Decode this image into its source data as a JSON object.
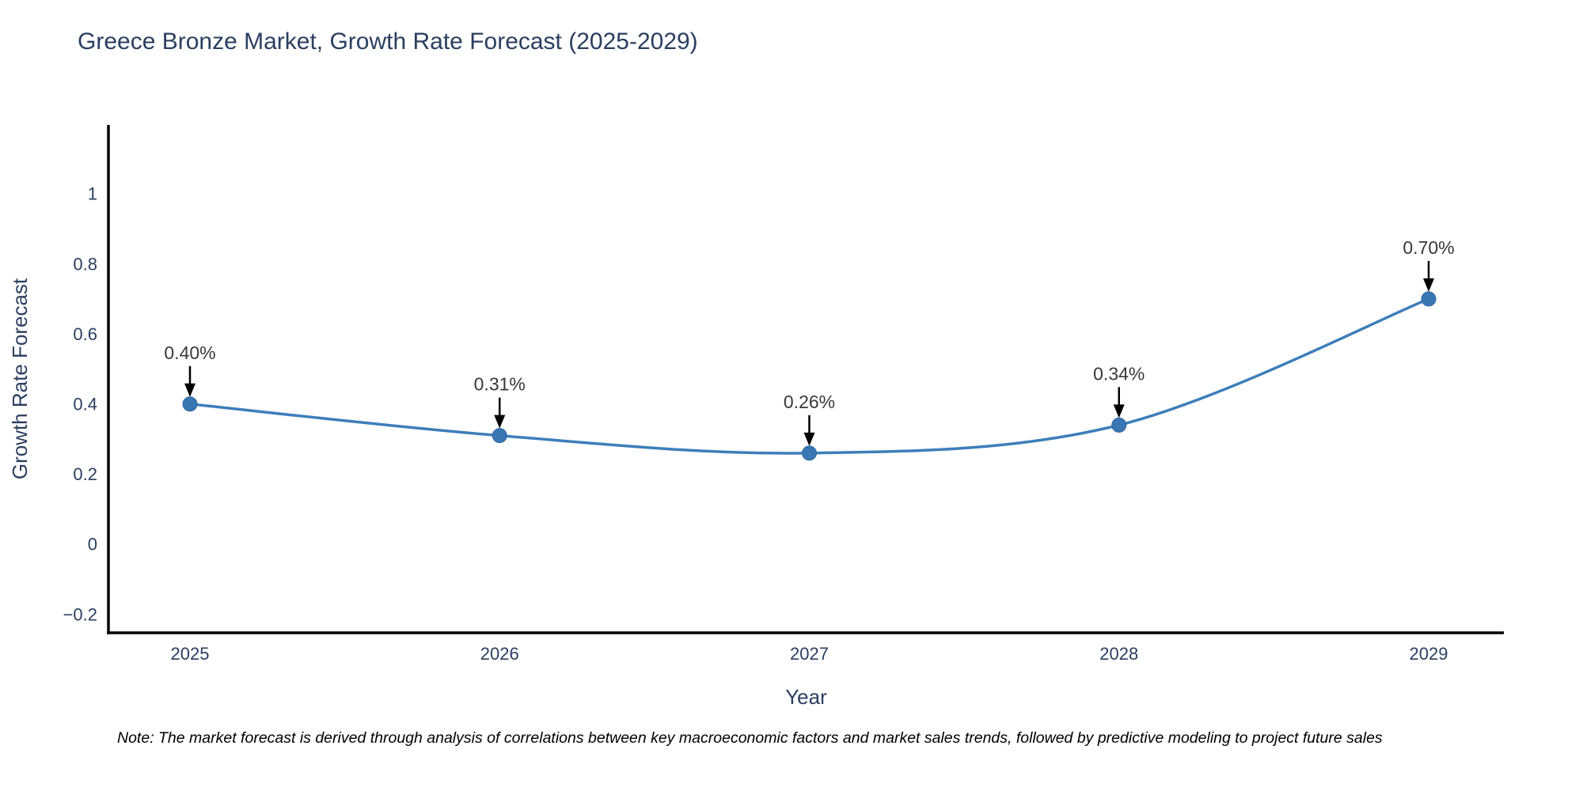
{
  "title": "Greece Bronze Market, Growth Rate Forecast (2025-2029)",
  "note": "Note: The market forecast is derived through analysis of correlations between key macroeconomic factors and market sales trends, followed by predictive modeling to project future sales",
  "chart_data": {
    "type": "line",
    "line_shape": "spline",
    "x": [
      2025,
      2026,
      2027,
      2028,
      2029
    ],
    "categories": [
      "2025",
      "2026",
      "2027",
      "2028",
      "2029"
    ],
    "series": [
      {
        "name": "Growth Rate Forecast",
        "values": [
          0.4,
          0.31,
          0.26,
          0.34,
          0.7
        ],
        "point_labels": [
          "0.40%",
          "0.31%",
          "0.26%",
          "0.34%",
          "0.70%"
        ]
      }
    ],
    "title": "Greece Bronze Market, Growth Rate Forecast (2025-2029)",
    "xlabel": "Year",
    "ylabel": "Growth Rate Forecast",
    "yticks": [
      1,
      0.8,
      0.6,
      0.4,
      0.2,
      0,
      -0.2
    ],
    "ytick_labels": [
      "1",
      "0.8",
      "0.6",
      "0.4",
      "0.2",
      "0",
      "−0.2"
    ],
    "ylim": [
      -0.25,
      1.2
    ],
    "grid": "off",
    "legend": "none",
    "colors": {
      "line": "#3d7eba",
      "marker_fill": "#3876b4",
      "marker_edge": "#2e679e",
      "axis_line": "#000000",
      "tick_text": "#2a3f5f",
      "axis_title_text": "#2a3f5f",
      "annotation_text": "#383838",
      "annotation_arrow": "#000000",
      "background": "#ffffff"
    }
  }
}
